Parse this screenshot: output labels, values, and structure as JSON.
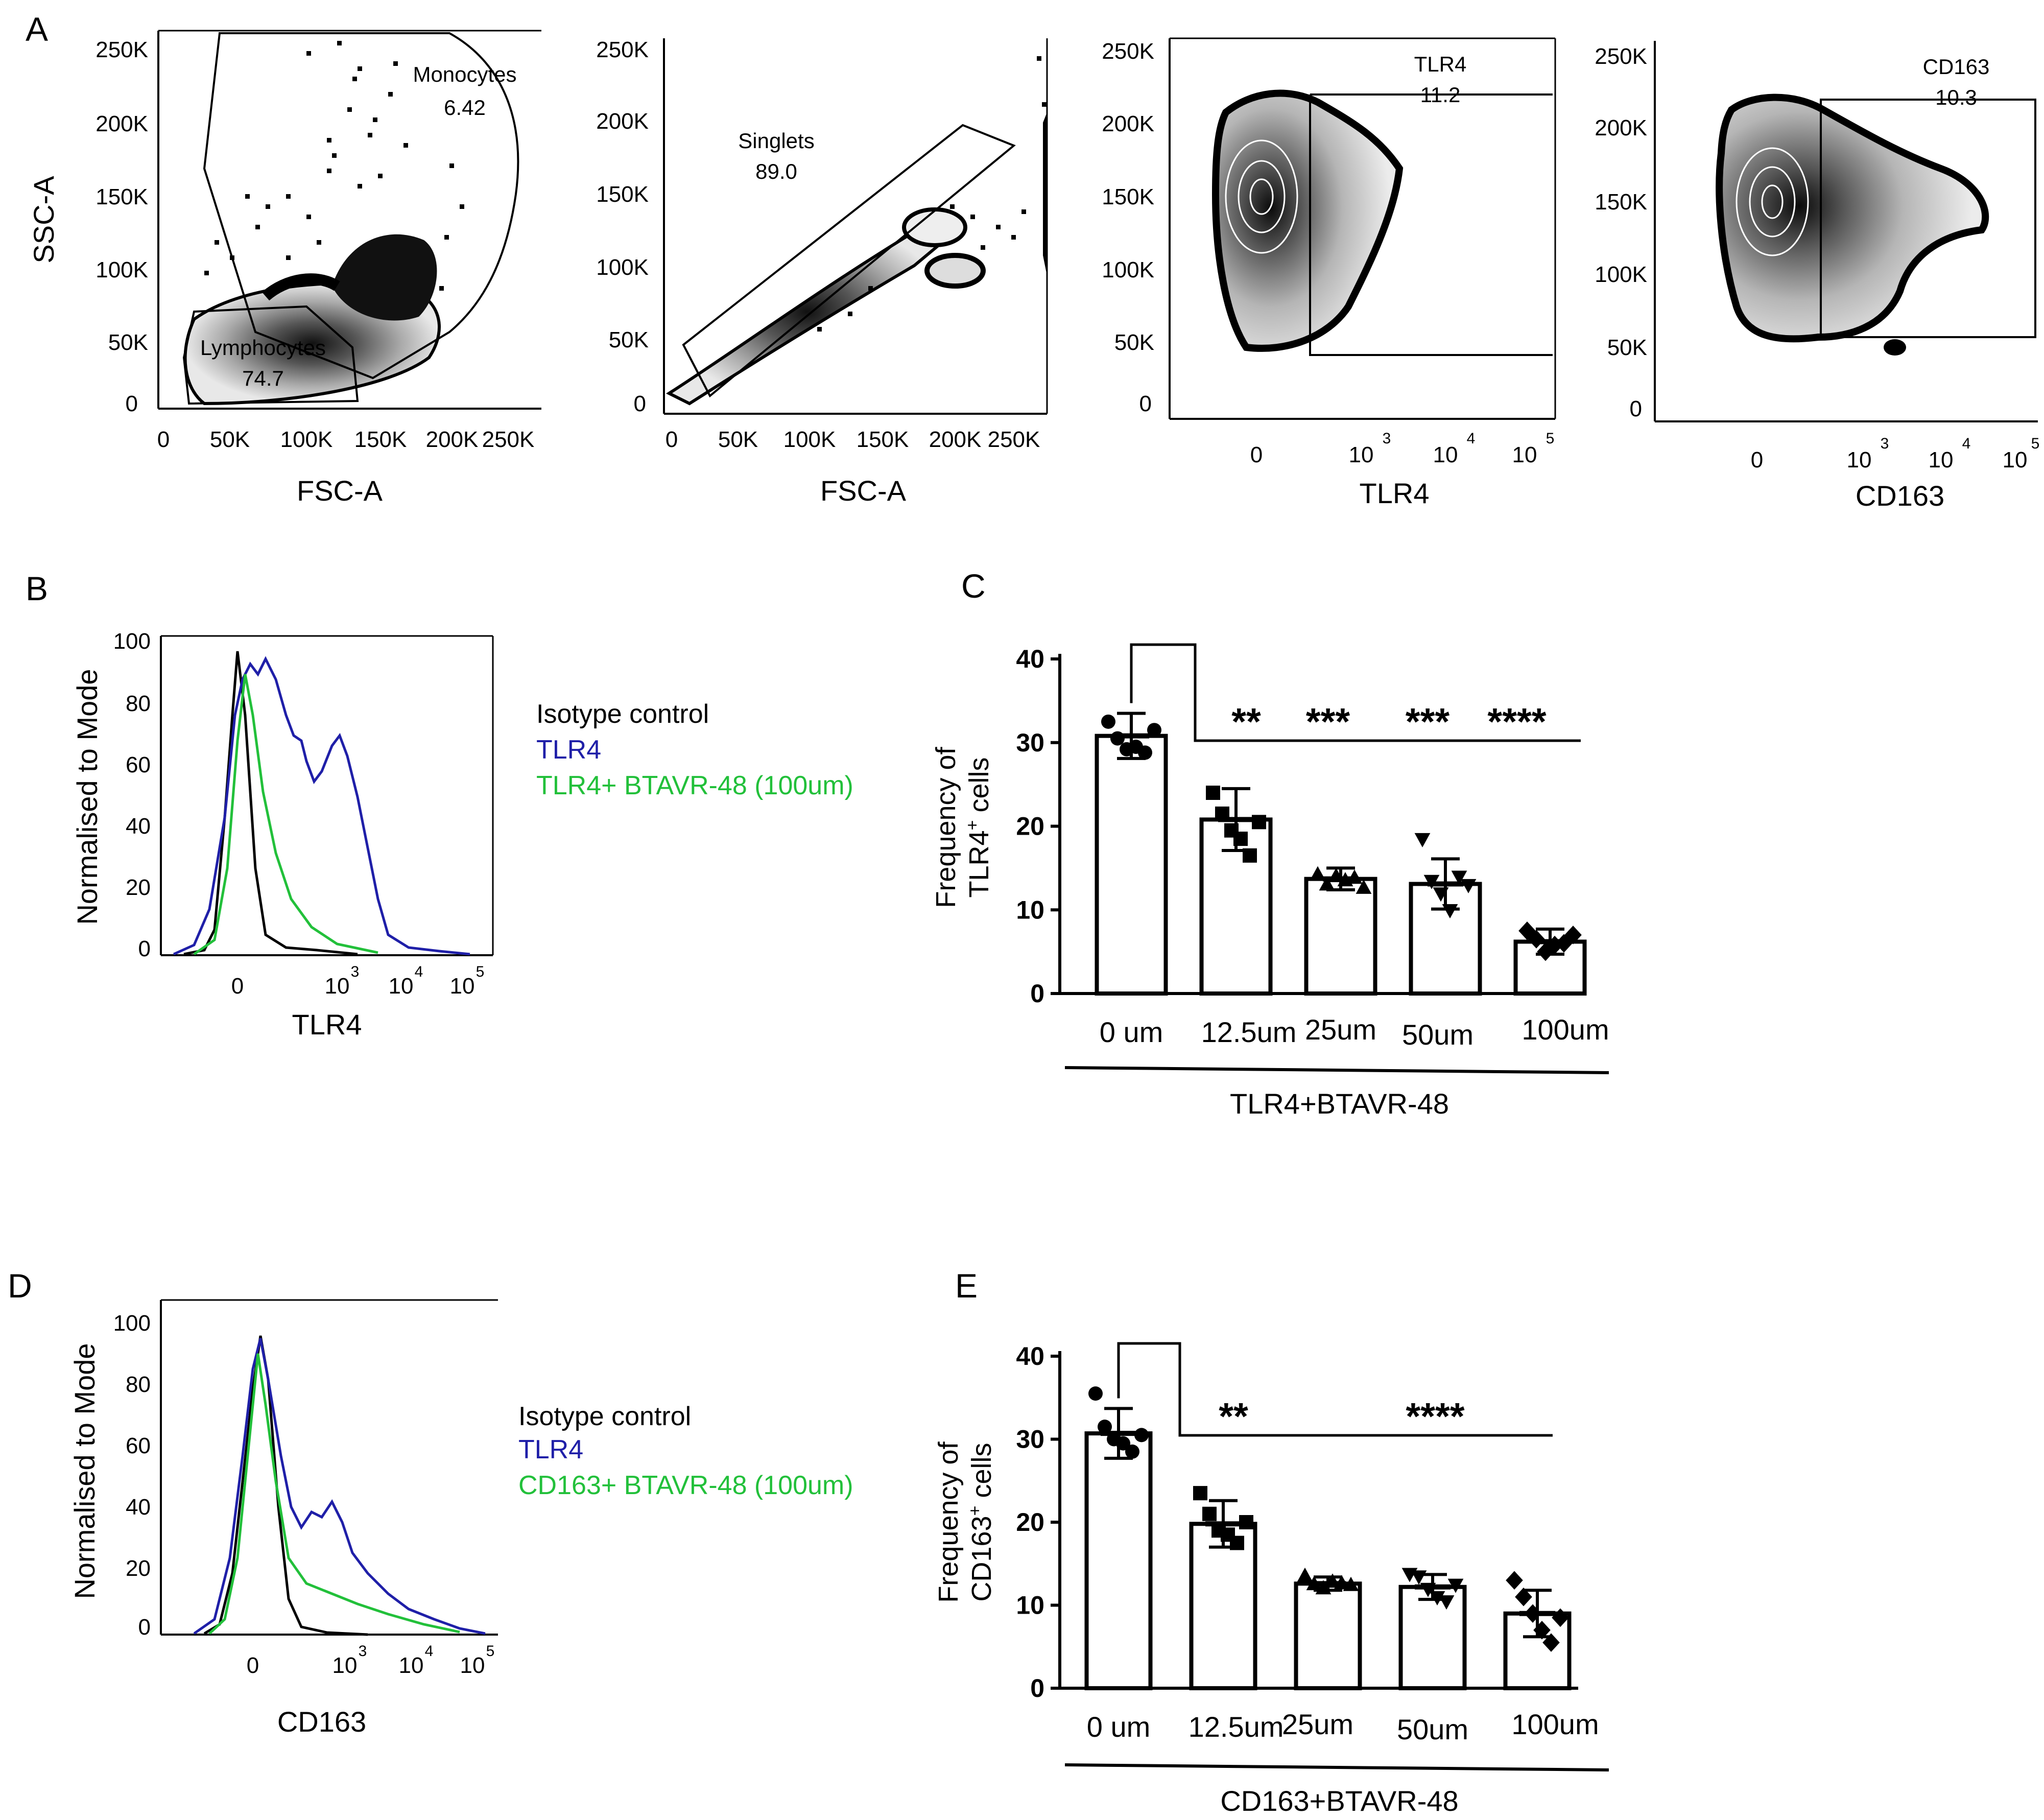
{
  "panels": {
    "A": "A",
    "B": "B",
    "C": "C",
    "D": "D",
    "E": "E"
  },
  "gating": {
    "ssc_ticks": [
      "250K",
      "200K",
      "150K",
      "100K",
      "50K",
      "0"
    ],
    "fsc_ticks": [
      "0",
      "50K",
      "100K",
      "150K",
      "200K",
      "250K"
    ],
    "log_ticks": [
      "0",
      "10",
      "10",
      "10"
    ],
    "log_exps": [
      "3",
      "4",
      "5"
    ],
    "p1": {
      "ylabel": "SSC-A",
      "xlabel": "FSC-A",
      "gate_monocytes": "Monocytes",
      "val_monocytes": "6.42",
      "gate_lymphocytes": "Lymphocytes",
      "val_lymphocytes": "74.7"
    },
    "p2": {
      "xlabel": "FSC-A",
      "gate": "Singlets",
      "val": "89.0"
    },
    "p3": {
      "xlabel": "TLR4",
      "gate": "TLR4",
      "val": "11.2"
    },
    "p4": {
      "xlabel": "CD163",
      "gate": "CD163",
      "val": "10.3"
    }
  },
  "histB": {
    "ylabel": "Normalised to Mode",
    "xlabel": "TLR4",
    "yticks": [
      "100",
      "80",
      "60",
      "40",
      "20",
      "0"
    ],
    "legend": [
      "Isotype control",
      "TLR4",
      "TLR4+ BTAVR-48 (100um)"
    ]
  },
  "histD": {
    "ylabel": "Normalised to Mode",
    "xlabel": "CD163",
    "yticks": [
      "100",
      "80",
      "60",
      "40",
      "20",
      "0"
    ],
    "legend": [
      "Isotype control",
      "TLR4",
      "CD163+ BTAVR-48 (100um)"
    ]
  },
  "colors": {
    "isotype": "#000000",
    "tlr4": "#1f1fa8",
    "treated": "#22c03a"
  },
  "chart_data": [
    {
      "type": "bar",
      "panel": "C",
      "categories": [
        "0 um",
        "12.5um",
        "25um",
        "50um",
        "100um"
      ],
      "values": [
        30.8,
        20.8,
        13.7,
        13.1,
        6.2
      ],
      "errors": [
        2.7,
        3.7,
        1.3,
        3.0,
        1.5
      ],
      "points": [
        [
          32.5,
          30.5,
          29.2,
          29.5,
          28.8,
          31.5
        ],
        [
          24.0,
          21.5,
          19.5,
          18.5,
          16.5,
          20.5
        ],
        [
          14.2,
          13.0,
          14.0,
          13.5,
          13.8,
          12.6
        ],
        [
          18.5,
          13.5,
          12.0,
          10.0,
          14.0,
          13.0
        ],
        [
          7.5,
          6.5,
          5.0,
          5.8,
          6.0,
          7.0
        ]
      ],
      "markers": [
        "circle",
        "square",
        "triangle-up",
        "triangle-down",
        "diamond"
      ],
      "ylabel_top": "Frequency of",
      "ylabel_main": "TLR4",
      "ylabel_sup": "+",
      "ylabel_end": " cells",
      "xlabel": "TLR4+BTAVR-48",
      "ylim": [
        0,
        40
      ],
      "yticks": [
        "40",
        "30",
        "20",
        "10",
        "0"
      ],
      "significance": [
        "**",
        "***",
        "***",
        "****"
      ]
    },
    {
      "type": "bar",
      "panel": "E",
      "categories": [
        "0 um",
        "12.5um",
        "25um",
        "50um",
        "100um"
      ],
      "values": [
        30.7,
        19.8,
        12.6,
        12.2,
        9.0
      ],
      "errors": [
        3.0,
        2.8,
        0.8,
        1.5,
        2.8
      ],
      "points": [
        [
          35.5,
          31.5,
          30.0,
          29.5,
          28.5,
          30.5
        ],
        [
          23.5,
          21.0,
          19.0,
          18.5,
          17.5,
          20.0
        ],
        [
          13.5,
          12.5,
          12.0,
          12.8,
          12.6,
          12.4
        ],
        [
          13.8,
          13.5,
          12.0,
          11.0,
          10.5,
          12.5
        ],
        [
          13.0,
          11.0,
          9.0,
          7.0,
          5.5,
          8.5
        ]
      ],
      "markers": [
        "circle",
        "square",
        "triangle-up",
        "triangle-down",
        "diamond"
      ],
      "ylabel_top": "Frequency of",
      "ylabel_main": "CD163",
      "ylabel_sup": "+",
      "ylabel_end": " cells",
      "xlabel": "CD163+BTAVR-48",
      "ylim": [
        0,
        40
      ],
      "yticks": [
        "40",
        "30",
        "20",
        "10",
        "0"
      ],
      "significance": [
        "**",
        "****"
      ]
    }
  ]
}
